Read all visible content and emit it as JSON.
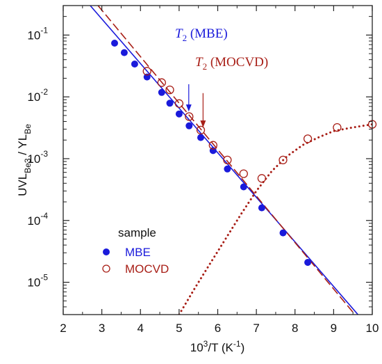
{
  "chart_data": {
    "type": "scatter",
    "x_axis": {
      "min": 2,
      "max": 10,
      "scale": "linear",
      "ticks": [
        "2",
        "3",
        "4",
        "5",
        "6",
        "7",
        "8",
        "9",
        "10"
      ]
    },
    "y_axis": {
      "min": 3e-06,
      "max": 0.3,
      "scale": "log",
      "ticks": [
        1e-05,
        0.0001,
        0.001,
        0.01,
        0.1
      ]
    },
    "series": [
      {
        "name": "MBE",
        "color": "#1a1adb",
        "marker": "filled-circle",
        "points": [
          [
            3.33,
            0.074
          ],
          [
            3.58,
            0.052
          ],
          [
            3.85,
            0.034
          ],
          [
            4.17,
            0.021
          ],
          [
            4.55,
            0.0118
          ],
          [
            4.76,
            0.0079
          ],
          [
            5.0,
            0.0053
          ],
          [
            5.26,
            0.0034
          ],
          [
            5.56,
            0.0022
          ],
          [
            5.88,
            0.00135
          ],
          [
            6.25,
            0.00068
          ],
          [
            6.67,
            0.00035
          ],
          [
            7.14,
            0.00016
          ],
          [
            7.69,
            6.3e-05
          ],
          [
            8.33,
            2.1e-05
          ]
        ]
      },
      {
        "name": "MOCVD",
        "color": "#a81e16",
        "marker": "open-circle",
        "points": [
          [
            4.17,
            0.026
          ],
          [
            4.55,
            0.017
          ],
          [
            4.76,
            0.013
          ],
          [
            5.0,
            0.0078
          ],
          [
            5.26,
            0.0048
          ],
          [
            5.56,
            0.0029
          ],
          [
            5.88,
            0.00165
          ],
          [
            6.25,
            0.00095
          ],
          [
            6.67,
            0.00057
          ],
          [
            7.14,
            0.00048
          ],
          [
            7.69,
            0.00095
          ],
          [
            8.33,
            0.0021
          ],
          [
            9.09,
            0.0032
          ],
          [
            10.0,
            0.0036
          ]
        ]
      }
    ],
    "fits": [
      {
        "series": "MBE",
        "style": "solid",
        "color": "#1a1adb",
        "x": [
          2.7,
          9.63
        ],
        "y": [
          0.3,
          3e-06
        ]
      },
      {
        "series": "MOCVD",
        "style": "dashed",
        "color": "#a81e16",
        "x": [
          2.9,
          9.55
        ],
        "y": [
          0.3,
          3e-06
        ]
      },
      {
        "series": "MOCVD",
        "style": "dotted",
        "color": "#a81e16",
        "x": [
          5.0,
          5.4,
          5.8,
          6.2,
          6.6,
          7.0,
          7.4,
          7.8,
          8.2,
          8.6,
          9.0,
          9.5,
          10.0
        ],
        "y": [
          3e-06,
          7.9e-06,
          2e-05,
          5e-05,
          0.000126,
          0.0003,
          0.00063,
          0.0011,
          0.00166,
          0.0022,
          0.0028,
          0.0032,
          0.0036
        ]
      }
    ],
    "annotations": [
      {
        "name": "MBE",
        "color": "#1a1adb",
        "arrow_x": 5.25,
        "arrow_y_from": 0.016,
        "arrow_y_to": 0.0058
      },
      {
        "name": "MOCVD",
        "color": "#a81e16",
        "arrow_x": 5.62,
        "arrow_y_from": 0.0115,
        "arrow_y_to": 0.0032
      }
    ]
  },
  "labels": {
    "xlabel_base": "10",
    "xlabel_exp": "3",
    "xlabel_rest": "/T (K",
    "xlabel_unit_exp": "-1",
    "xlabel_close": ")",
    "ylabel_a": "UVL",
    "ylabel_a_sub": "Be3",
    "ylabel_mid": " / YL",
    "ylabel_b_sub": "Be",
    "anno_T": "T",
    "anno_sub": "2",
    "anno_mbe": " (MBE)",
    "anno_mocvd": " (MOCVD)",
    "legend_title": "sample",
    "legend_mbe": "MBE",
    "legend_mocvd": "MOCVD",
    "ytick_base": "10",
    "ytick_exps": [
      "-5",
      "-4",
      "-3",
      "-2",
      "-1"
    ]
  }
}
